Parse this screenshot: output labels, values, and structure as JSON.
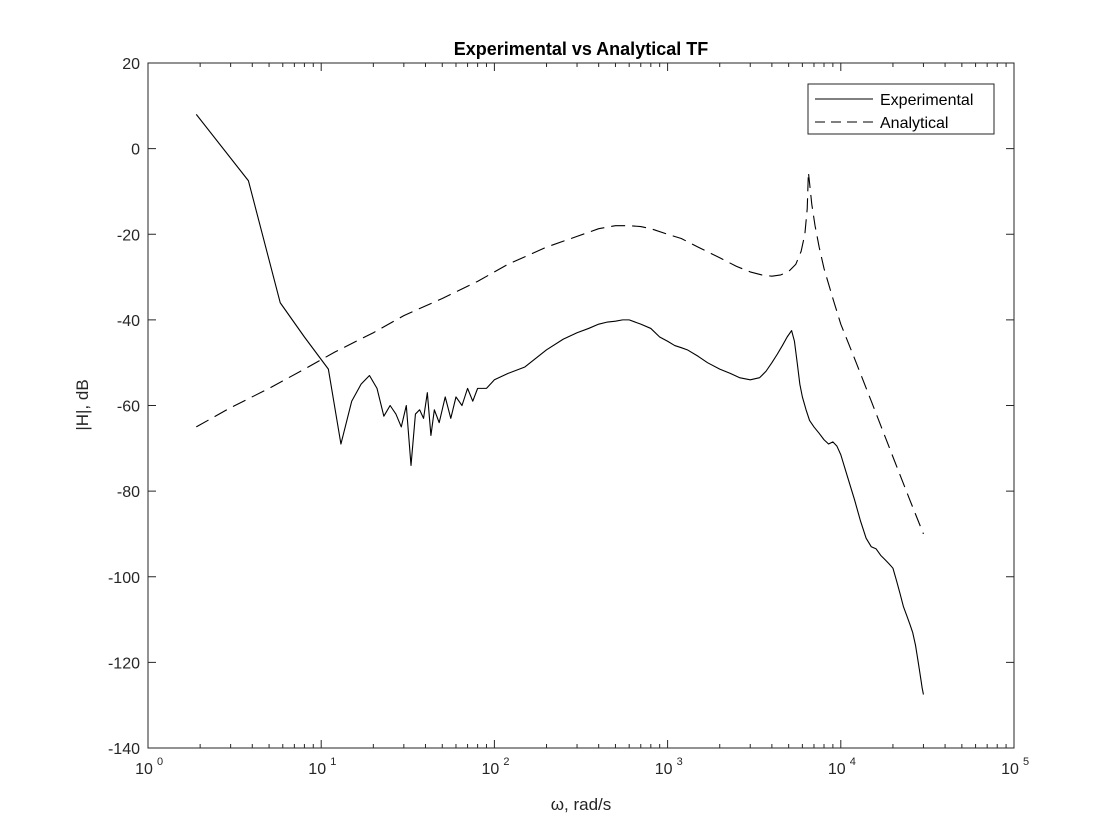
{
  "chart_data": {
    "type": "line",
    "title": "Experimental vs Analytical TF",
    "xlabel": "ω, rad/s",
    "ylabel": "|H|, dB",
    "xscale": "log",
    "xlim": [
      1,
      100000
    ],
    "ylim": [
      -140,
      20
    ],
    "xticks": [
      {
        "base": "10",
        "exp": "0",
        "value": 1
      },
      {
        "base": "10",
        "exp": "1",
        "value": 10
      },
      {
        "base": "10",
        "exp": "2",
        "value": 100
      },
      {
        "base": "10",
        "exp": "3",
        "value": 1000
      },
      {
        "base": "10",
        "exp": "4",
        "value": 10000
      },
      {
        "base": "10",
        "exp": "5",
        "value": 100000
      }
    ],
    "yticks": [
      "20",
      "0",
      "-20",
      "-40",
      "-60",
      "-80",
      "-100",
      "-120",
      "-140"
    ],
    "grid": false,
    "legend_position": "top-right",
    "series": [
      {
        "name": "Experimental",
        "style": "solid",
        "color": "#000000",
        "x": [
          1.9,
          3.8,
          5.8,
          8,
          11,
          13,
          15,
          17,
          19,
          21,
          23,
          25,
          27,
          29,
          31,
          33,
          35,
          37,
          39,
          41,
          43,
          45,
          48,
          52,
          56,
          60,
          65,
          70,
          75,
          80,
          90,
          100,
          120,
          150,
          200,
          250,
          300,
          350,
          400,
          450,
          500,
          550,
          600,
          700,
          800,
          900,
          1000,
          1100,
          1200,
          1300,
          1500,
          1700,
          2000,
          2300,
          2600,
          3000,
          3400,
          3700,
          4000,
          4300,
          4600,
          4900,
          5200,
          5400,
          5600,
          5800,
          6000,
          6300,
          6600,
          7000,
          7500,
          8000,
          8500,
          9000,
          9500,
          10000,
          11000,
          12000,
          13000,
          14000,
          15000,
          16000,
          17000,
          18000,
          19000,
          20000,
          21000,
          22000,
          23000,
          24000,
          25000,
          26000,
          27000,
          27500,
          28000,
          28500,
          29000,
          29500,
          30000
        ],
        "y": [
          8,
          -7.5,
          -36,
          -44,
          -51.5,
          -69,
          -59,
          -55,
          -53,
          -56,
          -62.5,
          -60,
          -62,
          -65,
          -60,
          -74,
          -62,
          -61,
          -63,
          -57,
          -67,
          -61,
          -64,
          -58,
          -63,
          -58,
          -60,
          -56,
          -59,
          -56,
          -56,
          -54,
          -52.5,
          -51,
          -47,
          -44.5,
          -43,
          -42,
          -41,
          -40.5,
          -40.3,
          -40,
          -40,
          -41,
          -42,
          -44,
          -45,
          -46,
          -46.5,
          -47,
          -48.5,
          -50,
          -51.5,
          -52.5,
          -53.5,
          -54,
          -53.5,
          -52,
          -50,
          -48,
          -46,
          -44,
          -42.5,
          -45,
          -50,
          -55,
          -58,
          -61,
          -63.5,
          -65,
          -66.5,
          -68,
          -69,
          -68.5,
          -69.5,
          -71.5,
          -77,
          -82,
          -87,
          -91,
          -93,
          -93.5,
          -95,
          -96,
          -97,
          -98,
          -101,
          -104,
          -107,
          -109,
          -111,
          -113,
          -116,
          -118,
          -120,
          -122,
          -124,
          -126,
          -127.5
        ]
      },
      {
        "name": "Analytical",
        "style": "dashed",
        "color": "#000000",
        "x": [
          1.9,
          3,
          5,
          8,
          12,
          20,
          30,
          50,
          80,
          120,
          200,
          300,
          400,
          500,
          600,
          700,
          800,
          1000,
          1200,
          1500,
          2000,
          2500,
          3000,
          3500,
          4000,
          4500,
          5000,
          5500,
          5900,
          6200,
          6400,
          6500,
          6600,
          6800,
          7100,
          7500,
          8000,
          9000,
          10000,
          12000,
          15000,
          20000,
          25000,
          30000
        ],
        "y": [
          -65,
          -60.5,
          -56,
          -51.5,
          -47.5,
          -43,
          -39,
          -35,
          -31,
          -27,
          -23,
          -20.5,
          -18.7,
          -18,
          -18,
          -18.2,
          -18.7,
          -20,
          -21,
          -23,
          -25.5,
          -27.5,
          -28.8,
          -29.5,
          -29.8,
          -29.5,
          -28.7,
          -27,
          -24,
          -20,
          -14,
          -5.5,
          -8,
          -13,
          -18,
          -23,
          -28,
          -35,
          -41,
          -49,
          -59,
          -72,
          -82,
          -90
        ]
      }
    ]
  }
}
